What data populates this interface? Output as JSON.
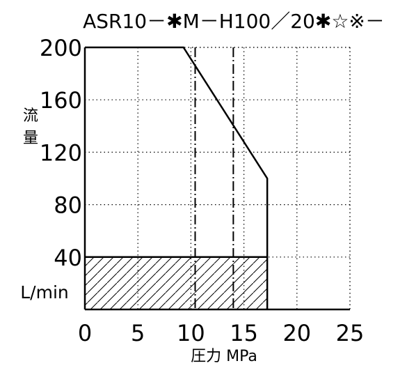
{
  "chart_data": {
    "type": "line",
    "title": "ASR10－✱M－H100／20✱☆※－",
    "xlabel": "圧力 MPa",
    "ylabel_chars": [
      "流",
      "量"
    ],
    "yunit": "L/min",
    "xlim": [
      0,
      25
    ],
    "ylim": [
      0,
      200
    ],
    "x_ticks": [
      0,
      5,
      10,
      15,
      20,
      25
    ],
    "y_ticks": [
      40,
      80,
      120,
      160,
      200
    ],
    "grid": true,
    "series": [
      {
        "x": [
          0,
          9.3,
          17.2,
          17.2
        ],
        "y": [
          200,
          200,
          100,
          0
        ]
      }
    ],
    "reference_lines": [
      {
        "x": 10.4,
        "style": "dash-dot"
      },
      {
        "x": 14.0,
        "style": "dash-dot"
      }
    ],
    "hatched_region": {
      "x": [
        0,
        17.2
      ],
      "y": [
        0,
        40
      ]
    },
    "horizontal_line": {
      "y": 40,
      "x": [
        0,
        17.2
      ]
    },
    "colors": {
      "line": "#000000",
      "grid": "#000000",
      "background": "#ffffff"
    }
  }
}
